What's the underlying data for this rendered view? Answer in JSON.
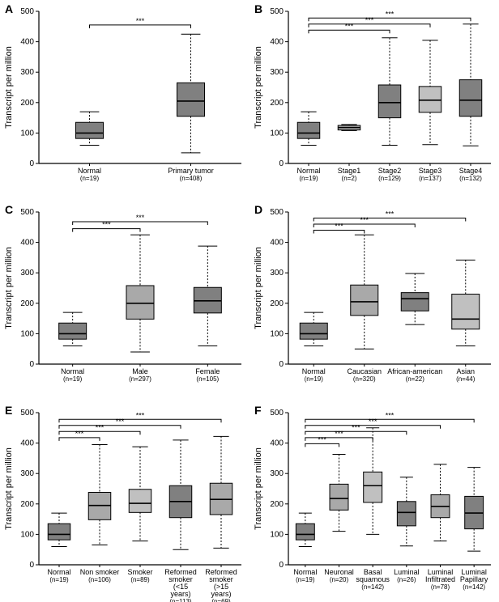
{
  "global": {
    "y_label": "Transcript per million",
    "ylim": [
      0,
      500
    ],
    "yticks": [
      0,
      100,
      200,
      300,
      400,
      500
    ],
    "background": "#ffffff",
    "axis_color": "#000000",
    "box_border": "#000000",
    "whisker_color": "#000000",
    "sig_color": "#000000",
    "label_fontsize": 11,
    "tick_fontsize": 10,
    "cat_fontsize": 9,
    "panel_letter_fontsize": 14
  },
  "palette": {
    "dark": "#808080",
    "med": "#a9a9a9",
    "light": "#c0c0c0"
  },
  "panels": [
    {
      "letter": "A",
      "categories": [
        {
          "label": "Normal",
          "n": "(n=19)",
          "q1": 82,
          "median": 100,
          "q3": 135,
          "low": 60,
          "high": 170,
          "fill": "#808080"
        },
        {
          "label": "Primary tumor",
          "n": "(n=408)",
          "q1": 155,
          "median": 205,
          "q3": 265,
          "low": 35,
          "high": 425,
          "fill": "#808080"
        }
      ],
      "sig": [
        {
          "from": 0,
          "to": 1,
          "y": 455,
          "label": "***"
        }
      ]
    },
    {
      "letter": "B",
      "categories": [
        {
          "label": "Normal",
          "n": "(n=19)",
          "q1": 82,
          "median": 100,
          "q3": 135,
          "low": 60,
          "high": 170,
          "fill": "#808080"
        },
        {
          "label": "Stage1",
          "n": "(n=2)",
          "q1": 110,
          "median": 118,
          "q3": 125,
          "low": 108,
          "high": 128,
          "fill": "#a9a9a9"
        },
        {
          "label": "Stage2",
          "n": "(n=129)",
          "q1": 150,
          "median": 200,
          "q3": 258,
          "low": 60,
          "high": 413,
          "fill": "#808080"
        },
        {
          "label": "Stage3",
          "n": "(n=137)",
          "q1": 168,
          "median": 208,
          "q3": 253,
          "low": 62,
          "high": 405,
          "fill": "#c0c0c0"
        },
        {
          "label": "Stage4",
          "n": "(n=132)",
          "q1": 155,
          "median": 208,
          "q3": 275,
          "low": 58,
          "high": 458,
          "fill": "#808080"
        }
      ],
      "sig": [
        {
          "from": 0,
          "to": 2,
          "y": 438,
          "label": "***"
        },
        {
          "from": 0,
          "to": 3,
          "y": 458,
          "label": "***"
        },
        {
          "from": 0,
          "to": 4,
          "y": 478,
          "label": "***"
        }
      ]
    },
    {
      "letter": "C",
      "categories": [
        {
          "label": "Normal",
          "n": "(n=19)",
          "q1": 82,
          "median": 100,
          "q3": 135,
          "low": 60,
          "high": 170,
          "fill": "#808080"
        },
        {
          "label": "Male",
          "n": "(n=297)",
          "q1": 148,
          "median": 200,
          "q3": 258,
          "low": 40,
          "high": 425,
          "fill": "#a9a9a9"
        },
        {
          "label": "Female",
          "n": "(n=105)",
          "q1": 168,
          "median": 208,
          "q3": 252,
          "low": 60,
          "high": 388,
          "fill": "#808080"
        }
      ],
      "sig": [
        {
          "from": 0,
          "to": 1,
          "y": 445,
          "label": "***"
        },
        {
          "from": 0,
          "to": 2,
          "y": 468,
          "label": "***"
        }
      ]
    },
    {
      "letter": "D",
      "categories": [
        {
          "label": "Normal",
          "n": "(n=19)",
          "q1": 82,
          "median": 100,
          "q3": 135,
          "low": 60,
          "high": 170,
          "fill": "#808080"
        },
        {
          "label": "Caucasian",
          "n": "(n=320)",
          "q1": 160,
          "median": 205,
          "q3": 260,
          "low": 50,
          "high": 425,
          "fill": "#a9a9a9"
        },
        {
          "label": "African-american",
          "n": "(n=22)",
          "q1": 175,
          "median": 215,
          "q3": 235,
          "low": 130,
          "high": 298,
          "fill": "#808080"
        },
        {
          "label": "Asian",
          "n": "(n=44)",
          "q1": 115,
          "median": 148,
          "q3": 230,
          "low": 60,
          "high": 342,
          "fill": "#c0c0c0"
        }
      ],
      "sig": [
        {
          "from": 0,
          "to": 1,
          "y": 440,
          "label": "***"
        },
        {
          "from": 0,
          "to": 2,
          "y": 460,
          "label": "***"
        },
        {
          "from": 0,
          "to": 3,
          "y": 480,
          "label": "***"
        }
      ]
    },
    {
      "letter": "E",
      "categories": [
        {
          "label": "Normal",
          "n": "(n=19)",
          "q1": 82,
          "median": 100,
          "q3": 135,
          "low": 60,
          "high": 170,
          "fill": "#808080"
        },
        {
          "label": "Non smoker",
          "n": "(n=106)",
          "q1": 148,
          "median": 195,
          "q3": 238,
          "low": 65,
          "high": 395,
          "fill": "#a9a9a9"
        },
        {
          "label": "Smoker",
          "n": "(n=89)",
          "q1": 172,
          "median": 202,
          "q3": 248,
          "low": 78,
          "high": 388,
          "fill": "#c0c0c0"
        },
        {
          "label": "Reformed smoker (<15 years)",
          "n": "(n=113)",
          "q1": 155,
          "median": 208,
          "q3": 260,
          "low": 50,
          "high": 410,
          "fill": "#808080"
        },
        {
          "label": "Reformed smoker (>15 years)",
          "n": "(n=69)",
          "q1": 165,
          "median": 215,
          "q3": 268,
          "low": 55,
          "high": 422,
          "fill": "#a9a9a9"
        }
      ],
      "sig": [
        {
          "from": 0,
          "to": 1,
          "y": 418,
          "label": "***"
        },
        {
          "from": 0,
          "to": 2,
          "y": 438,
          "label": "***"
        },
        {
          "from": 0,
          "to": 3,
          "y": 458,
          "label": "***"
        },
        {
          "from": 0,
          "to": 4,
          "y": 478,
          "label": "***"
        }
      ]
    },
    {
      "letter": "F",
      "categories": [
        {
          "label": "Normal",
          "n": "(n=19)",
          "q1": 82,
          "median": 100,
          "q3": 135,
          "low": 60,
          "high": 170,
          "fill": "#808080"
        },
        {
          "label": "Neuronal",
          "n": "(n=20)",
          "q1": 180,
          "median": 218,
          "q3": 265,
          "low": 110,
          "high": 363,
          "fill": "#a9a9a9"
        },
        {
          "label": "Basal squamous",
          "n": "(n=142)",
          "q1": 205,
          "median": 260,
          "q3": 305,
          "low": 100,
          "high": 450,
          "fill": "#c0c0c0"
        },
        {
          "label": "Luminal",
          "n": "(n=26)",
          "q1": 128,
          "median": 172,
          "q3": 208,
          "low": 62,
          "high": 288,
          "fill": "#808080"
        },
        {
          "label": "Luminal Infiltrated",
          "n": "(n=78)",
          "q1": 155,
          "median": 192,
          "q3": 230,
          "low": 78,
          "high": 330,
          "fill": "#a9a9a9"
        },
        {
          "label": "Luminal Papillary",
          "n": "(n=142)",
          "q1": 118,
          "median": 170,
          "q3": 225,
          "low": 45,
          "high": 320,
          "fill": "#808080"
        }
      ],
      "sig": [
        {
          "from": 0,
          "to": 1,
          "y": 398,
          "label": "***"
        },
        {
          "from": 0,
          "to": 2,
          "y": 418,
          "label": "***"
        },
        {
          "from": 0,
          "to": 3,
          "y": 438,
          "label": "***"
        },
        {
          "from": 0,
          "to": 4,
          "y": 458,
          "label": "***"
        },
        {
          "from": 0,
          "to": 5,
          "y": 478,
          "label": "***"
        }
      ]
    }
  ]
}
